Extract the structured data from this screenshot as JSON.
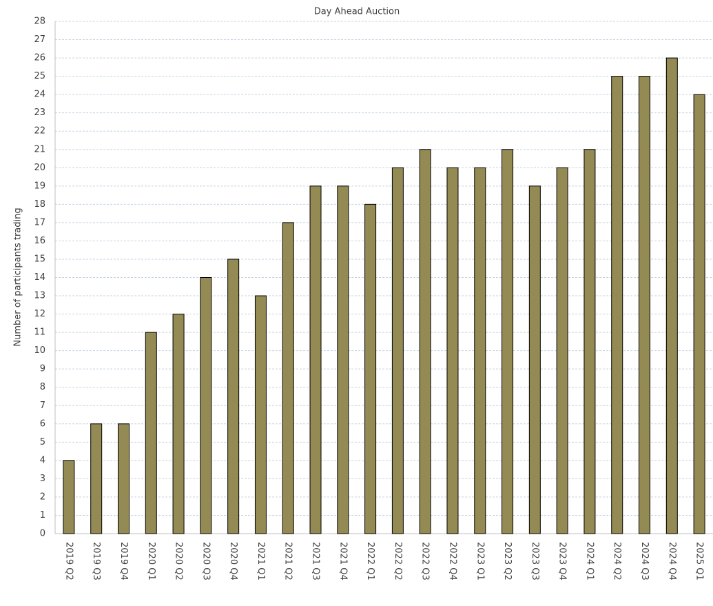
{
  "chart_data": {
    "type": "bar",
    "title": "Day Ahead Auction",
    "y_label": "Number of participants trading",
    "categories": [
      "2019 Q2",
      "2019 Q3",
      "2019 Q4",
      "2020 Q1",
      "2020 Q2",
      "2020 Q3",
      "2020 Q4",
      "2021 Q1",
      "2021 Q2",
      "2021 Q3",
      "2021 Q4",
      "2022 Q1",
      "2022 Q2",
      "2022 Q3",
      "2022 Q4",
      "2023 Q1",
      "2023 Q2",
      "2023 Q3",
      "2023 Q4",
      "2024 Q1",
      "2024 Q2",
      "2024 Q3",
      "2024 Q4",
      "2025 Q1"
    ],
    "values": [
      4,
      6,
      6,
      11,
      12,
      14,
      15,
      13,
      17,
      19,
      19,
      18,
      20,
      21,
      20,
      20,
      21,
      19,
      20,
      21,
      25,
      25,
      26,
      24
    ],
    "color": "#948a54",
    "ylim": [
      0,
      28
    ],
    "yticks": [
      0,
      1,
      2,
      3,
      4,
      5,
      6,
      7,
      8,
      9,
      10,
      11,
      12,
      13,
      14,
      15,
      16,
      17,
      18,
      19,
      20,
      21,
      22,
      23,
      24,
      25,
      26,
      27,
      28
    ],
    "grid": true
  }
}
